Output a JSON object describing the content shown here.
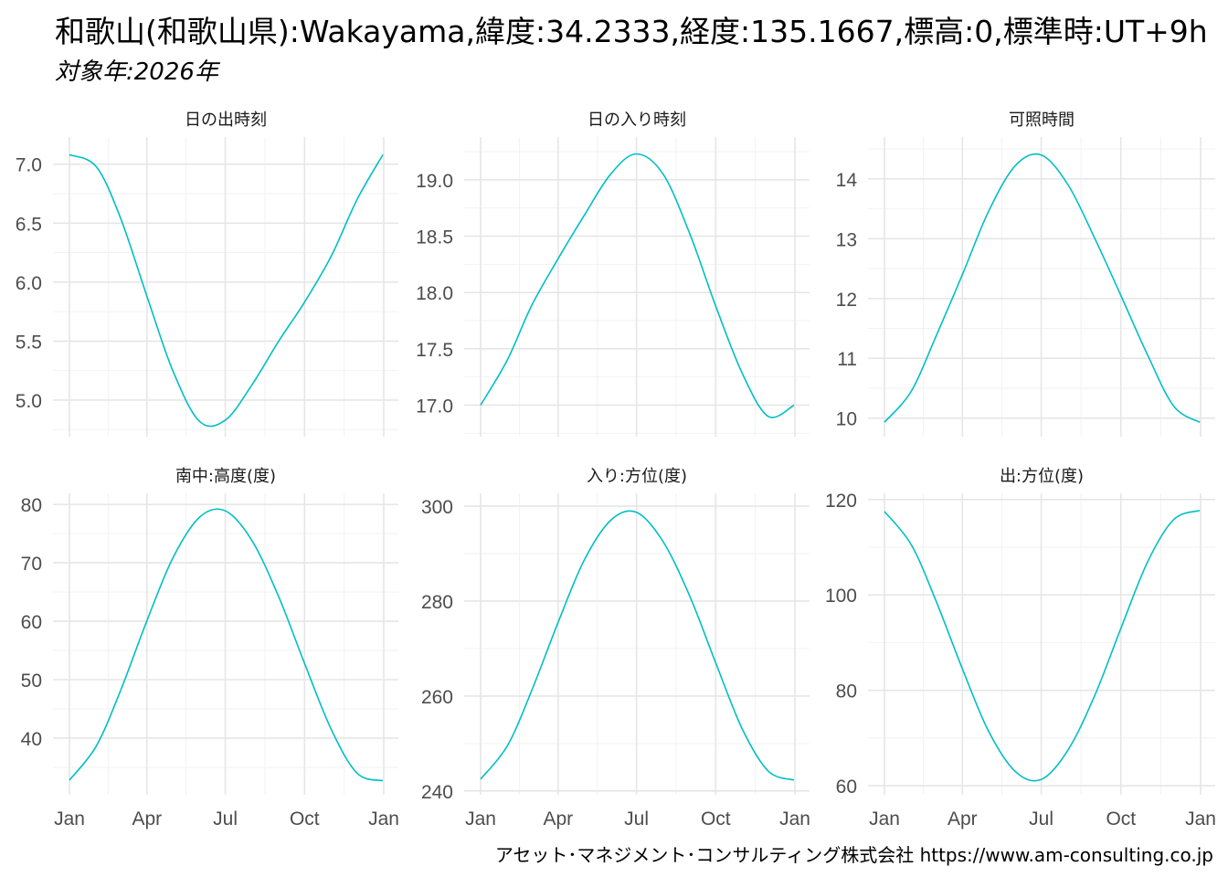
{
  "title": "和歌山(和歌山県):Wakayama,緯度:34.2333,経度:135.1667,標高:0,標準時:UT+9h",
  "subtitle": "対象年:2026年",
  "footer": "アセット･マネジメント･コンサルティング株式会社 https://www.am-consulting.co.jp",
  "chart_data": {
    "type": "line",
    "line_color": "#00BFC4",
    "x_ticks": [
      {
        "day": 0,
        "label": "Jan"
      },
      {
        "day": 90,
        "label": "Apr"
      },
      {
        "day": 181,
        "label": "Jul"
      },
      {
        "day": 273,
        "label": "Oct"
      },
      {
        "day": 365,
        "label": "Jan"
      }
    ],
    "x_days": [
      0,
      31,
      59,
      90,
      120,
      151,
      181,
      212,
      243,
      273,
      304,
      334,
      364
    ],
    "panels": [
      {
        "title": "日の出時刻",
        "ylim": [
          4.69,
          7.23
        ],
        "yticks": [
          5.0,
          5.5,
          6.0,
          6.5,
          7.0
        ],
        "ytick_labels": [
          "5.0",
          "5.5",
          "6.0",
          "6.5",
          "7.0"
        ],
        "values": [
          7.08,
          6.98,
          6.55,
          5.88,
          5.25,
          4.82,
          4.83,
          5.13,
          5.5,
          5.83,
          6.22,
          6.7,
          7.08
        ]
      },
      {
        "title": "日の入り時刻",
        "ylim": [
          16.72,
          19.38
        ],
        "yticks": [
          17.0,
          17.5,
          18.0,
          18.5,
          19.0
        ],
        "ytick_labels": [
          "17.0",
          "17.5",
          "18.0",
          "18.5",
          "19.0"
        ],
        "values": [
          17.0,
          17.4,
          17.88,
          18.3,
          18.68,
          19.05,
          19.23,
          19.05,
          18.52,
          17.88,
          17.28,
          16.9,
          17.0
        ]
      },
      {
        "title": "可照時間",
        "ylim": [
          9.69,
          14.7
        ],
        "yticks": [
          10,
          11,
          12,
          13,
          14
        ],
        "ytick_labels": [
          "10",
          "11",
          "12",
          "13",
          "14"
        ],
        "values": [
          9.93,
          10.45,
          11.35,
          12.4,
          13.45,
          14.22,
          14.4,
          13.9,
          13.0,
          12.05,
          11.05,
          10.2,
          9.93
        ]
      },
      {
        "title": "南中:高度(度)",
        "ylim": [
          30.3,
          81.9
        ],
        "yticks": [
          40,
          50,
          60,
          70,
          80
        ],
        "ytick_labels": [
          "40",
          "50",
          "60",
          "70",
          "80"
        ],
        "values": [
          32.8,
          38.6,
          48.0,
          60.1,
          70.8,
          77.8,
          78.9,
          73.8,
          64.2,
          52.8,
          41.5,
          34.0,
          32.7
        ]
      },
      {
        "title": "入り:方位(度)",
        "ylim": [
          239.2,
          302.7
        ],
        "yticks": [
          240,
          260,
          280,
          300
        ],
        "ytick_labels": [
          "240",
          "260",
          "280",
          "300"
        ],
        "values": [
          242.5,
          249.5,
          261,
          275.5,
          288.5,
          297,
          298.7,
          292.5,
          281,
          267,
          253,
          244.2,
          242.3
        ]
      },
      {
        "title": "出:方位(度)",
        "ylim": [
          58.1,
          121.3
        ],
        "yticks": [
          60,
          80,
          100,
          120
        ],
        "ytick_labels": [
          "60",
          "80",
          "100",
          "120"
        ],
        "values": [
          117.5,
          110.5,
          99,
          84.5,
          71.5,
          63,
          61.3,
          67.5,
          79,
          93,
          107,
          115.8,
          117.7
        ]
      }
    ]
  }
}
